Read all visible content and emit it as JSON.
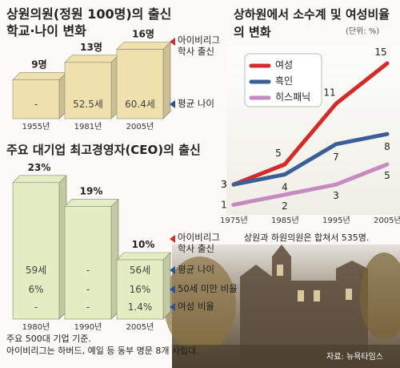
{
  "chart_data": [
    {
      "type": "bar",
      "title": "상원의원(정원 100명)의 출신학교·나이 변화",
      "categories": [
        "1955년",
        "1981년",
        "2005년"
      ],
      "color": "#efe1ad",
      "series": [
        {
          "name": "아이비리그 학사 출신",
          "color": "#d0312d",
          "values": [
            9,
            13,
            16
          ],
          "value_labels": [
            "9명",
            "13명",
            "16명"
          ]
        }
      ],
      "bar_labels": [
        {
          "name": "평균 나이",
          "color": "#2d4f9a",
          "labels": [
            "-",
            "52.5세",
            "60.4세"
          ]
        }
      ]
    },
    {
      "type": "bar",
      "title": "주요 대기업 최고경영자(CEO)의 출신",
      "categories": [
        "1980년",
        "1990년",
        "2005년"
      ],
      "color": "#e4ecc2",
      "series": [
        {
          "name": "아이비리그 학사 출신",
          "color": "#d0312d",
          "values": [
            23,
            19,
            10
          ],
          "value_labels": [
            "23%",
            "19%",
            "10%"
          ]
        }
      ],
      "bar_labels": [
        {
          "name": "평균 나이",
          "color": "#2d4f9a",
          "labels": [
            "59세",
            "-",
            "56세"
          ]
        },
        {
          "name": "50세 미만 비율",
          "color": "#2d4f9a",
          "labels": [
            "6%",
            "-",
            "16%"
          ]
        },
        {
          "name": "여성 비율",
          "color": "#2d4f9a",
          "labels": [
            "-",
            "-",
            "1.4%"
          ]
        }
      ],
      "notes": [
        "주요 500대 기업 기준.",
        "아이비리그는 하버드, 예일 등 동부 명문 8개 사립대."
      ]
    },
    {
      "type": "line",
      "title": "상하원에서 소수계 및 여성비율의 변화",
      "unit": "(단위: %)",
      "categories": [
        "1975년",
        "1985년",
        "1995년",
        "2005년"
      ],
      "series": [
        {
          "name": "여성",
          "color": "#d42a2a",
          "values": [
            3,
            5,
            11,
            15
          ]
        },
        {
          "name": "흑인",
          "color": "#3a5e96",
          "values": [
            3,
            4,
            7,
            8
          ]
        },
        {
          "name": "히스패닉",
          "color": "#c58ac0",
          "values": [
            1,
            2,
            3,
            5
          ]
        }
      ],
      "note": "상원과 하원의원은 합쳐서 535명.",
      "source": "자료: 뉴욕타임스"
    }
  ]
}
